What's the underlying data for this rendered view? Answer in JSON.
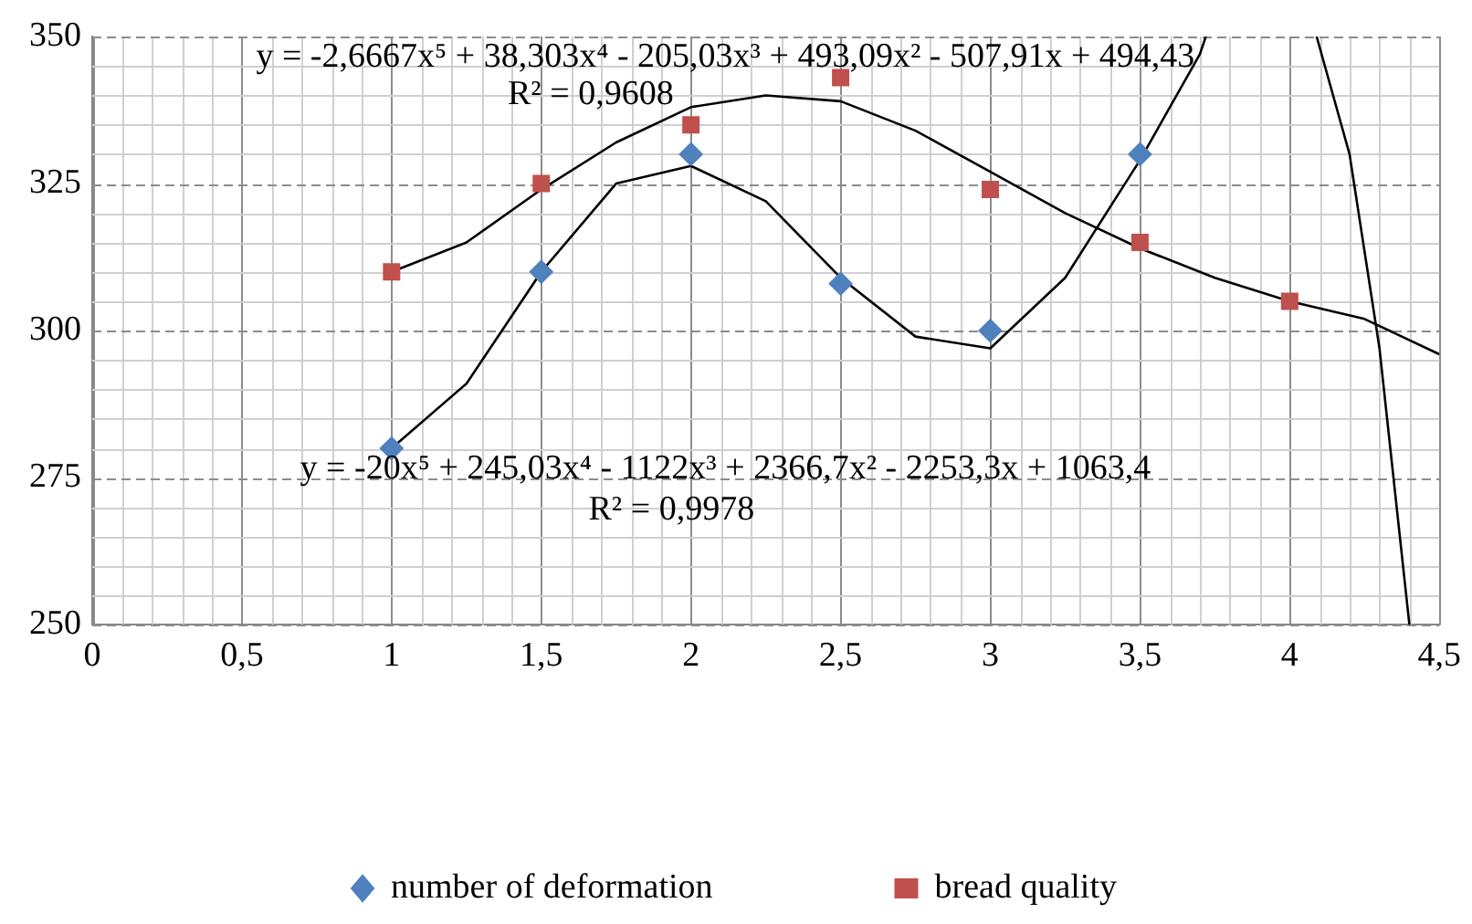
{
  "chart_data": {
    "type": "scatter",
    "xlim": [
      0,
      4.5
    ],
    "xticks": [
      0,
      {
        "value": 0.1,
        "label": null
      },
      {
        "value": 0.2,
        "label": null
      },
      {
        "value": 0.3,
        "label": null
      },
      {
        "value": 0.4,
        "label": null
      },
      {
        "value": 0.5,
        "label": "0,5"
      },
      {
        "value": 0.6,
        "label": null
      },
      {
        "value": 0.7,
        "label": null
      },
      {
        "value": 0.8,
        "label": null
      },
      {
        "value": 0.9,
        "label": null
      },
      1,
      {
        "value": 1.1,
        "label": null
      },
      {
        "value": 1.2,
        "label": null
      },
      {
        "value": 1.3,
        "label": null
      },
      {
        "value": 1.4,
        "label": null
      },
      {
        "value": 1.5,
        "label": "1,5"
      },
      {
        "value": 1.6,
        "label": null
      },
      {
        "value": 1.7,
        "label": null
      },
      {
        "value": 1.8,
        "label": null
      },
      {
        "value": 1.9,
        "label": null
      },
      2,
      {
        "value": 2.1,
        "label": null
      },
      {
        "value": 2.2,
        "label": null
      },
      {
        "value": 2.3,
        "label": null
      },
      {
        "value": 2.4,
        "label": null
      },
      {
        "value": 2.5,
        "label": "2,5"
      },
      {
        "value": 2.6,
        "label": null
      },
      {
        "value": 2.7,
        "label": null
      },
      {
        "value": 2.8,
        "label": null
      },
      {
        "value": 2.9,
        "label": null
      },
      3,
      {
        "value": 3.1,
        "label": null
      },
      {
        "value": 3.2,
        "label": null
      },
      {
        "value": 3.3,
        "label": null
      },
      {
        "value": 3.4,
        "label": null
      },
      {
        "value": 3.5,
        "label": "3,5"
      },
      {
        "value": 3.6,
        "label": null
      },
      {
        "value": 3.7,
        "label": null
      },
      {
        "value": 3.8,
        "label": null
      },
      {
        "value": 3.9,
        "label": null
      },
      4,
      {
        "value": 4.1,
        "label": null
      },
      {
        "value": 4.2,
        "label": null
      },
      {
        "value": 4.3,
        "label": null
      },
      {
        "value": 4.4,
        "label": null
      },
      {
        "value": 4.5,
        "label": "4,5"
      }
    ],
    "ylim": [
      250,
      350
    ],
    "yticks": [
      250,
      {
        "value": 255,
        "label": null
      },
      {
        "value": 260,
        "label": null
      },
      {
        "value": 265,
        "label": null
      },
      {
        "value": 270,
        "label": null
      },
      275,
      {
        "value": 280,
        "label": null
      },
      {
        "value": 285,
        "label": null
      },
      {
        "value": 290,
        "label": null
      },
      {
        "value": 295,
        "label": null
      },
      300,
      {
        "value": 305,
        "label": null
      },
      {
        "value": 310,
        "label": null
      },
      {
        "value": 315,
        "label": null
      },
      {
        "value": 320,
        "label": null
      },
      325,
      {
        "value": 330,
        "label": null
      },
      {
        "value": 335,
        "label": null
      },
      {
        "value": 340,
        "label": null
      },
      {
        "value": 345,
        "label": null
      },
      350
    ],
    "grid": true,
    "legend": "bottom",
    "series": [
      {
        "name": "number of deformation",
        "color": "#4f81bd",
        "marker": "diamond",
        "x": [
          1,
          1.5,
          2,
          2.5,
          3,
          3.5
        ],
        "values": [
          280,
          310,
          330,
          308,
          300,
          330
        ]
      },
      {
        "name": "bread quality",
        "color": "#c0504d",
        "marker": "square",
        "x": [
          1,
          1.5,
          2,
          2.5,
          3,
          3.5,
          4
        ],
        "values": [
          310,
          325,
          335,
          343,
          324,
          315,
          305
        ]
      },
      {
        "type": "line",
        "color": "#000000",
        "marker": "none",
        "x": [
          1,
          1.25,
          1.5,
          1.75,
          2,
          2.25,
          2.5,
          2.75,
          3,
          3.25,
          3.5,
          3.75,
          4,
          4.25,
          4.5
        ],
        "values": [
          310,
          315,
          324,
          332,
          338,
          340,
          339,
          334,
          327,
          320,
          314,
          309,
          305,
          302,
          296
        ]
      },
      {
        "type": "line",
        "color": "#000000",
        "marker": "none",
        "x": [
          1,
          1.25,
          1.5,
          1.75,
          2,
          2.25,
          2.5,
          2.75,
          3,
          3.25,
          3.5,
          3.7,
          3.72,
          3.9,
          4.09,
          4.2,
          4.3,
          4.4
        ],
        "values": [
          280,
          291,
          310,
          325,
          328,
          322,
          309,
          299,
          297,
          309,
          329,
          347,
          350,
          null,
          350,
          330,
          297,
          250
        ]
      }
    ],
    "annotations": [
      "y = -2,6667x⁵ + 38,303x⁴ - 205,03x³ + 493,09x² - 507,91x + 494,43",
      "R² = 0,9608",
      "y = -20x⁵ + 245,03x⁴ - 1122x³ + 2366,7x² - 2253,3x + 1063,4",
      "R² = 0,9978"
    ]
  }
}
